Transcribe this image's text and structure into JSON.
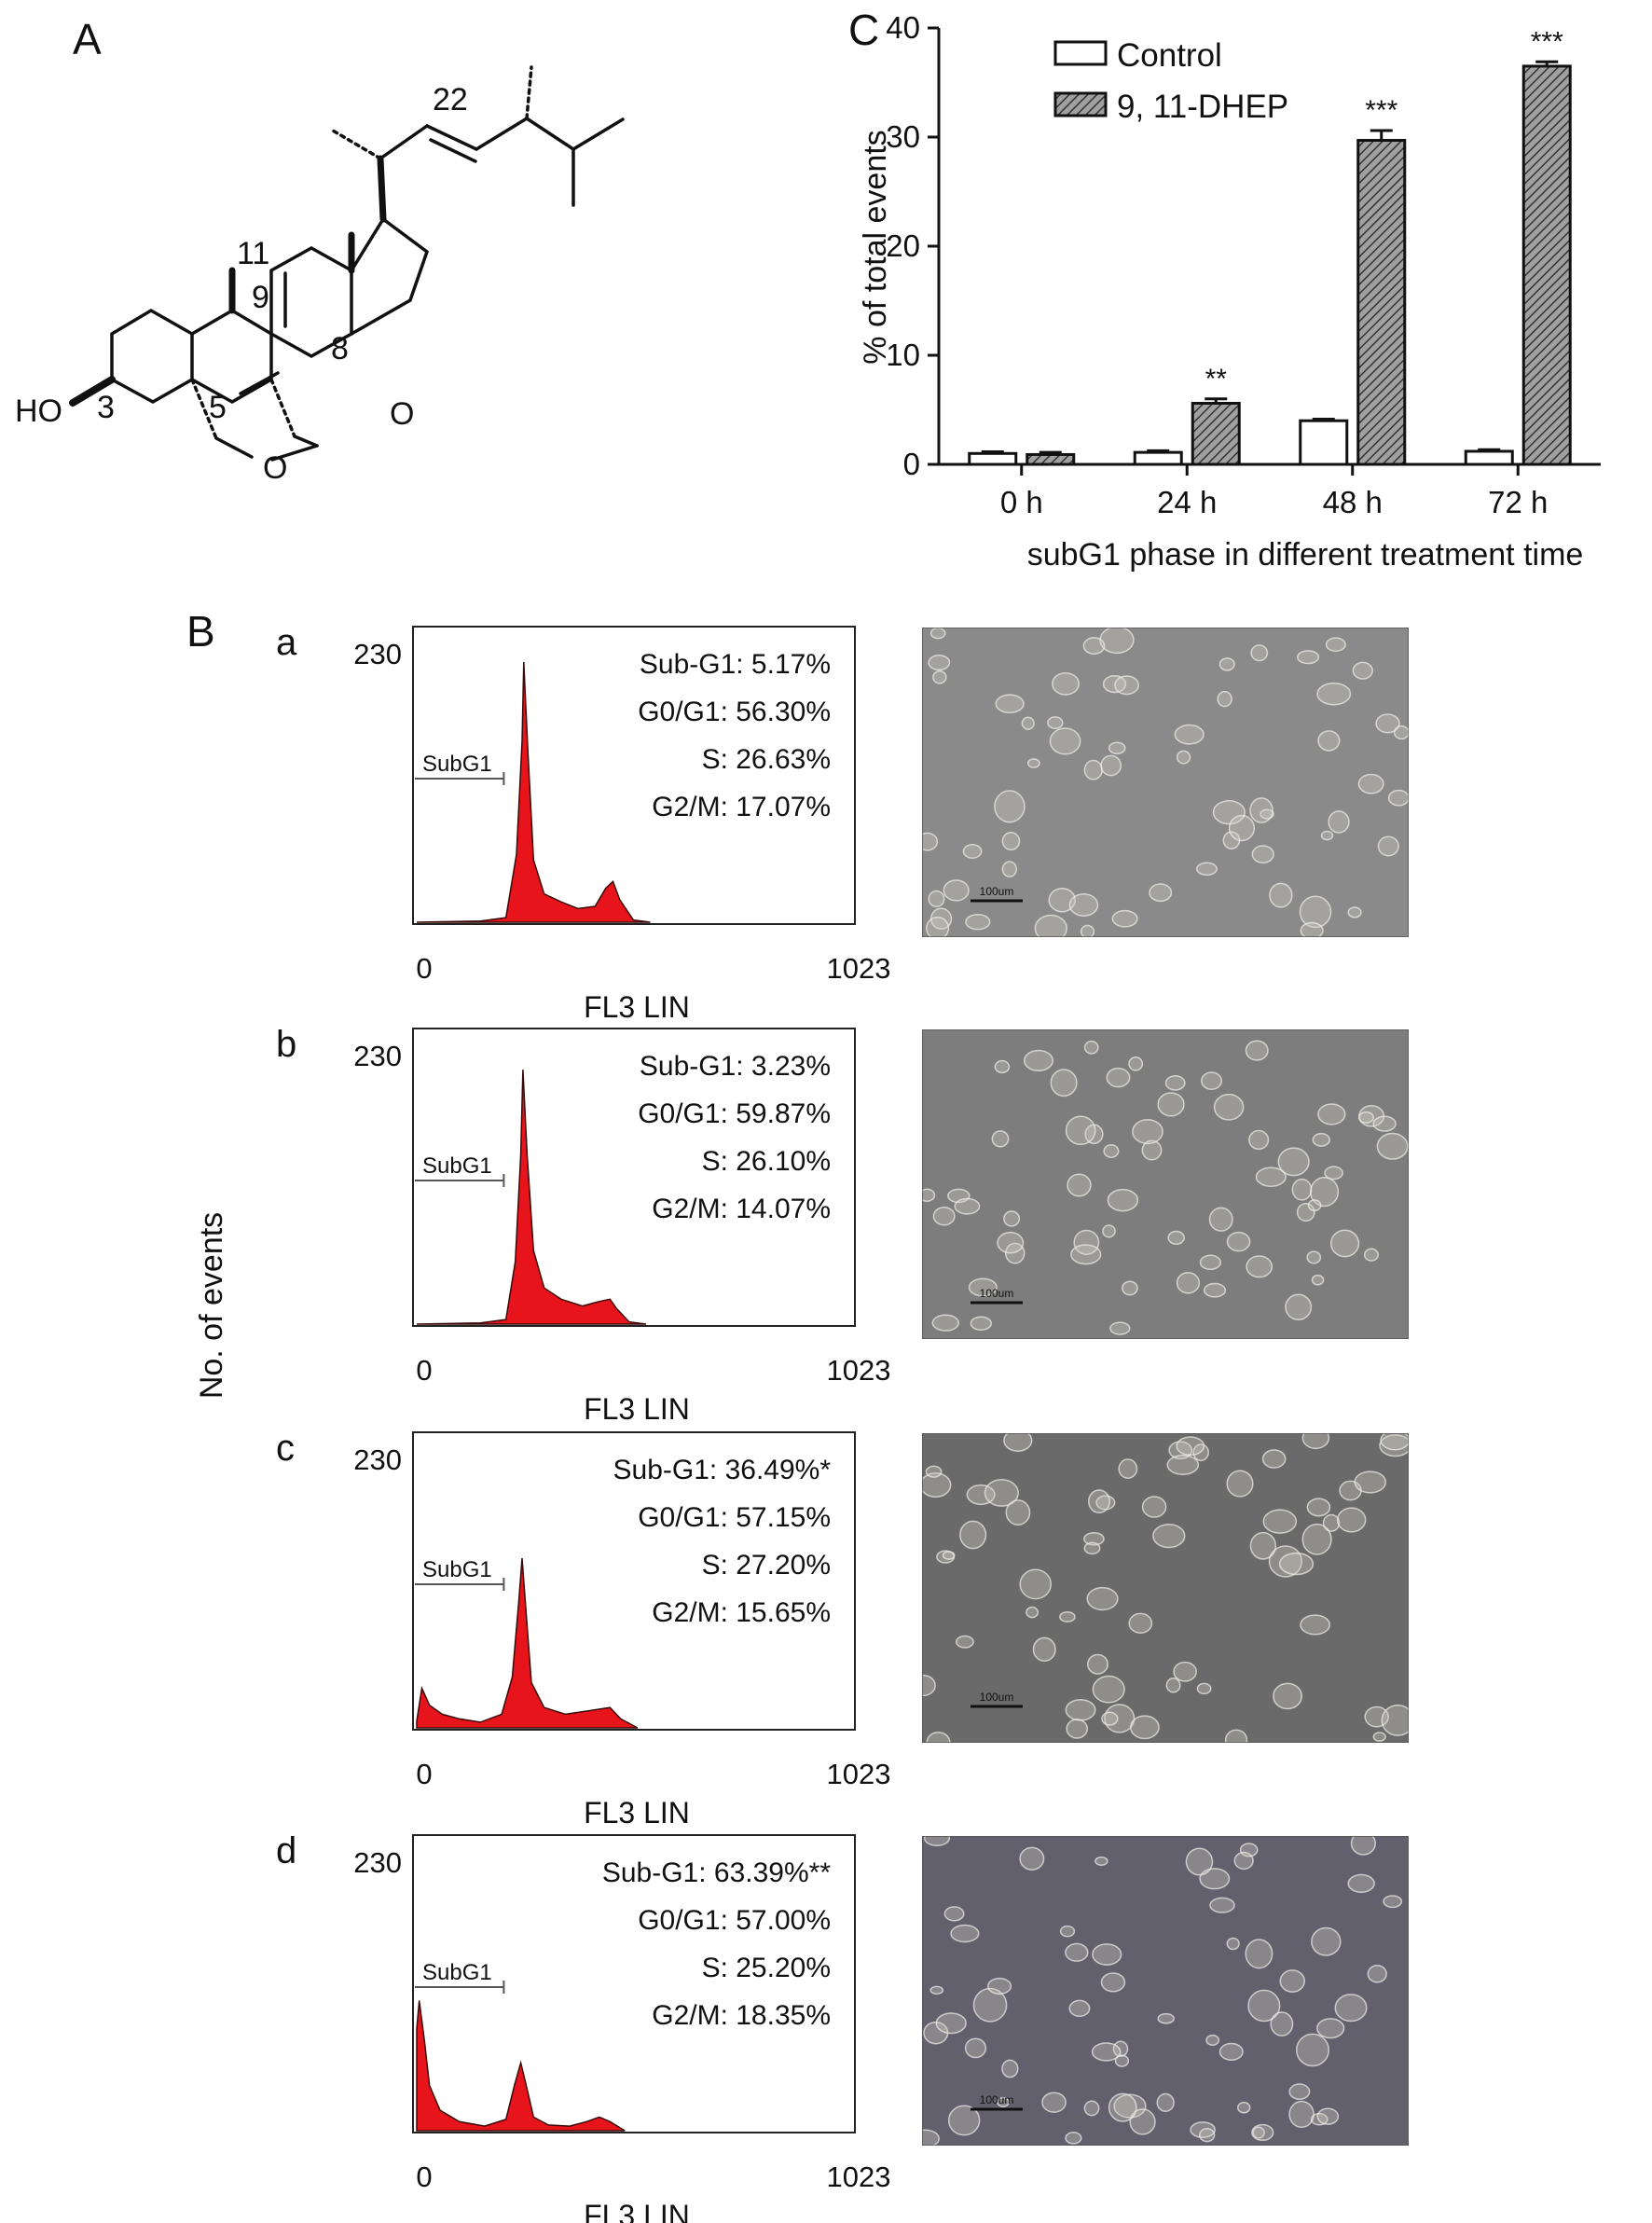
{
  "panel_labels": {
    "A": "A",
    "B": "B",
    "C": "C"
  },
  "structure": {
    "atom_labels": [
      "22",
      "11",
      "9",
      "8",
      "HO",
      "3",
      "5",
      "O",
      "O"
    ]
  },
  "chart_data": [
    {
      "type": "bar",
      "panel": "C",
      "categories": [
        "0 h",
        "24 h",
        "48 h",
        "72 h"
      ],
      "series": [
        {
          "name": "Control",
          "values": [
            1.0,
            1.1,
            4.0,
            1.2
          ],
          "errors": [
            0.15,
            0.15,
            0.15,
            0.15
          ],
          "fill": "#ffffff"
        },
        {
          "name": "9, 11-DHEP",
          "values": [
            0.9,
            5.6,
            29.7,
            36.5
          ],
          "errors": [
            0.2,
            0.4,
            0.9,
            0.4
          ],
          "fill": "#9a9a9a",
          "hatched": true
        }
      ],
      "significance": [
        "",
        "**",
        "***",
        "***"
      ],
      "xlabel": "subG1 phase in different treatment time",
      "ylabel": "% of total events",
      "ylim": [
        0,
        40
      ],
      "yticks": [
        "0",
        "10",
        "20",
        "30",
        "40"
      ],
      "legend_position": "top-left",
      "grid": false
    },
    {
      "type": "area",
      "panel": "B",
      "ylabel": "No. of events",
      "xlabel": "FL3 LIN",
      "xlim": [
        0,
        1023
      ],
      "ylim": [
        0,
        230
      ],
      "xticks": [
        "0",
        "1023"
      ],
      "ytick": "230",
      "gate_label": "SubG1",
      "fill_color": "#e8141b",
      "histograms": [
        {
          "label": "a",
          "stats": [
            "Sub-G1: 5.17%",
            "G0/G1: 56.30%",
            "S: 26.63%",
            "G2/M: 17.07%"
          ],
          "peaks": [
            [
              0,
              0
            ],
            [
              150,
              1
            ],
            [
              210,
              4
            ],
            [
              235,
              60
            ],
            [
              248,
              160
            ],
            [
              252,
              230
            ],
            [
              262,
              150
            ],
            [
              275,
              55
            ],
            [
              300,
              25
            ],
            [
              340,
              18
            ],
            [
              380,
              12
            ],
            [
              420,
              14
            ],
            [
              445,
              30
            ],
            [
              462,
              36
            ],
            [
              478,
              20
            ],
            [
              510,
              2
            ],
            [
              550,
              0
            ]
          ]
        },
        {
          "label": "b",
          "stats": [
            "Sub-G1: 3.23%",
            "G0/G1: 59.87%",
            "S: 26.10%",
            "G2/M: 14.07%"
          ],
          "peaks": [
            [
              0,
              0
            ],
            [
              150,
              1
            ],
            [
              210,
              4
            ],
            [
              232,
              55
            ],
            [
              245,
              150
            ],
            [
              250,
              225
            ],
            [
              260,
              150
            ],
            [
              275,
              65
            ],
            [
              300,
              32
            ],
            [
              340,
              22
            ],
            [
              390,
              16
            ],
            [
              430,
              20
            ],
            [
              455,
              22
            ],
            [
              470,
              14
            ],
            [
              500,
              2
            ],
            [
              540,
              0
            ]
          ]
        },
        {
          "label": "c",
          "stats": [
            "Sub-G1: 36.49%*",
            "G0/G1: 57.15%",
            "S: 27.20%",
            "G2/M: 15.65%"
          ],
          "peaks": [
            [
              0,
              6
            ],
            [
              12,
              35
            ],
            [
              30,
              20
            ],
            [
              60,
              12
            ],
            [
              100,
              8
            ],
            [
              150,
              5
            ],
            [
              200,
              12
            ],
            [
              225,
              45
            ],
            [
              240,
              110
            ],
            [
              248,
              150
            ],
            [
              258,
              100
            ],
            [
              270,
              40
            ],
            [
              300,
              18
            ],
            [
              350,
              12
            ],
            [
              420,
              16
            ],
            [
              455,
              18
            ],
            [
              480,
              8
            ],
            [
              520,
              0
            ]
          ]
        },
        {
          "label": "d",
          "stats": [
            "Sub-G1: 63.39%**",
            "G0/G1: 57.00%",
            "S: 25.20%",
            "G2/M: 18.35%"
          ],
          "peaks": [
            [
              0,
              90
            ],
            [
              6,
              115
            ],
            [
              18,
              80
            ],
            [
              30,
              40
            ],
            [
              55,
              18
            ],
            [
              100,
              8
            ],
            [
              160,
              4
            ],
            [
              210,
              10
            ],
            [
              230,
              40
            ],
            [
              245,
              60
            ],
            [
              258,
              40
            ],
            [
              275,
              12
            ],
            [
              310,
              5
            ],
            [
              360,
              4
            ],
            [
              400,
              8
            ],
            [
              430,
              12
            ],
            [
              455,
              8
            ],
            [
              490,
              0
            ]
          ]
        }
      ]
    }
  ],
  "micrographs": [
    {
      "label": "a",
      "scale_text": "100um",
      "tone": "#8a8a8a"
    },
    {
      "label": "b",
      "scale_text": "100um",
      "tone": "#7d7d7d"
    },
    {
      "label": "c",
      "scale_text": "100um",
      "tone": "#6a6a6a"
    },
    {
      "label": "d",
      "scale_text": "100um",
      "tone": "#62606c"
    }
  ]
}
